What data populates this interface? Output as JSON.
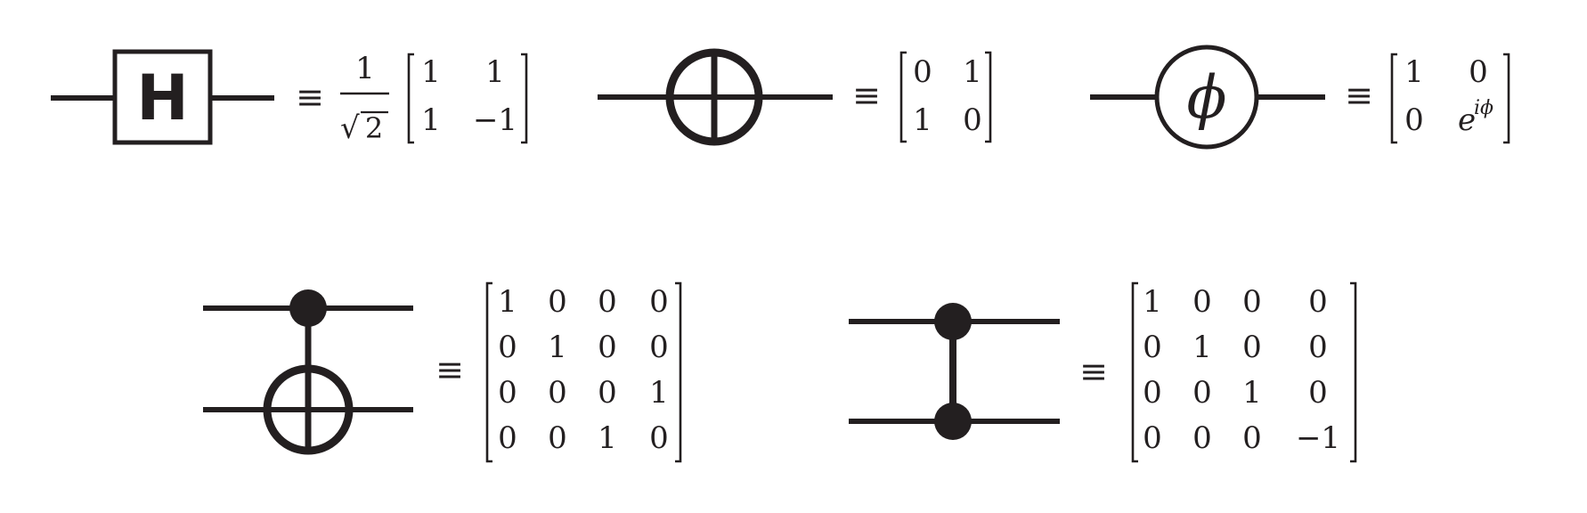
{
  "equivalence_symbol": "≡",
  "gates": {
    "hadamard": {
      "label": "H",
      "prefactor_numerator": "1",
      "prefactor_radical": "√",
      "prefactor_radicand": "2",
      "matrix": [
        [
          "1",
          "1"
        ],
        [
          "1",
          "−1"
        ]
      ]
    },
    "not": {
      "matrix": [
        [
          "0",
          "1"
        ],
        [
          "1",
          "0"
        ]
      ]
    },
    "phase": {
      "label": "ϕ",
      "matrix": [
        [
          "1",
          "0"
        ],
        [
          "0",
          "e"
        ]
      ],
      "exponent": "iϕ"
    },
    "cnot": {
      "matrix": [
        [
          "1",
          "0",
          "0",
          "0"
        ],
        [
          "0",
          "1",
          "0",
          "0"
        ],
        [
          "0",
          "0",
          "0",
          "1"
        ],
        [
          "0",
          "0",
          "1",
          "0"
        ]
      ]
    },
    "cz": {
      "matrix": [
        [
          "1",
          "0",
          "0",
          "0"
        ],
        [
          "0",
          "1",
          "0",
          "0"
        ],
        [
          "0",
          "0",
          "1",
          "0"
        ],
        [
          "0",
          "0",
          "0",
          "−1"
        ]
      ]
    }
  }
}
